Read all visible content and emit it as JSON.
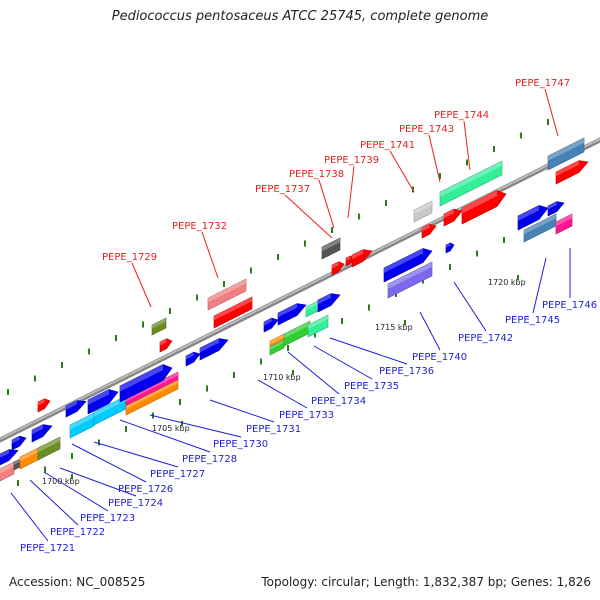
{
  "title": "Pediococcus pentosaceus ATCC 25745, complete genome",
  "footer": {
    "accession": "Accession: NC_008525",
    "summary": "Topology: circular; Length: 1,832,387 bp; Genes: 1,826"
  },
  "colors": {
    "label_red": "#e8201e",
    "label_blue": "#1f1fd6",
    "backbone": "#8a8a8a",
    "tick": "#2a7d1a"
  },
  "scale_labels": [
    "1700 kbp",
    "1705 kbp",
    "1710 kbp",
    "1715 kbp",
    "1720 kbp"
  ],
  "genes_above": [
    {
      "label": "PEPE_1729",
      "color": "#6b8e23"
    },
    {
      "label": "PEPE_1732",
      "color": "#f08080"
    },
    {
      "label": "PEPE_1737",
      "color": "#555555"
    },
    {
      "label": "PEPE_1738",
      "color": "#ff0000"
    },
    {
      "label": "PEPE_1739",
      "color": "#ff0000"
    },
    {
      "label": "PEPE_1741",
      "color": "#c8c8c8"
    },
    {
      "label": "PEPE_1743",
      "color": "#ff0000"
    },
    {
      "label": "PEPE_1744",
      "color": "#33ee99"
    },
    {
      "label": "PEPE_1747",
      "color": "#4682b4"
    }
  ],
  "genes_below": [
    {
      "label": "PEPE_1721",
      "color": "#0000ee"
    },
    {
      "label": "PEPE_1722",
      "color": "#f08080"
    },
    {
      "label": "PEPE_1723",
      "color": "#ff8c00"
    },
    {
      "label": "PEPE_1724",
      "color": "#6b8e23"
    },
    {
      "label": "PEPE_1726",
      "color": "#0000ee"
    },
    {
      "label": "PEPE_1727",
      "color": "#00ccff"
    },
    {
      "label": "PEPE_1728",
      "color": "#0000ee"
    },
    {
      "label": "PEPE_1730",
      "color": "#ff1493"
    },
    {
      "label": "PEPE_1731",
      "color": "#0000ee"
    },
    {
      "label": "PEPE_1733",
      "color": "#0000ee"
    },
    {
      "label": "PEPE_1734",
      "color": "#33cc33"
    },
    {
      "label": "PEPE_1735",
      "color": "#33ee99"
    },
    {
      "label": "PEPE_1736",
      "color": "#0000ee"
    },
    {
      "label": "PEPE_1740",
      "color": "#7b68ee"
    },
    {
      "label": "PEPE_1742",
      "color": "#0000ee"
    },
    {
      "label": "PEPE_1745",
      "color": "#4682b4"
    },
    {
      "label": "PEPE_1746",
      "color": "#ff1493"
    }
  ]
}
